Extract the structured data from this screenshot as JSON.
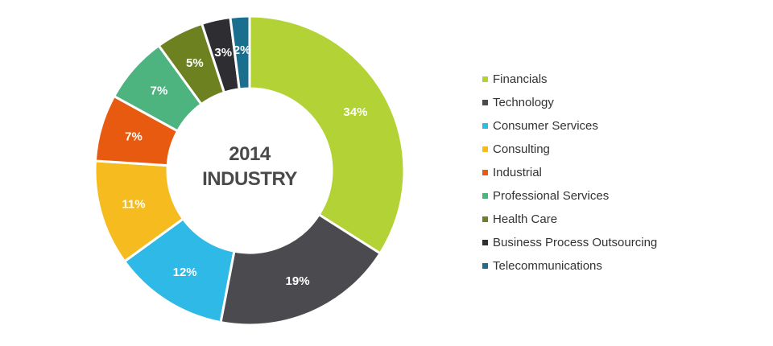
{
  "chart_data": {
    "type": "pie",
    "title": "2014",
    "subtitle": "INDUSTRY",
    "legend_position": "right",
    "categories": [
      "Financials",
      "Technology",
      "Consumer Services",
      "Consulting",
      "Industrial",
      "Professional Services",
      "Health Care",
      "Business Process Outsourcing",
      "Telecommunications"
    ],
    "values": [
      34,
      19,
      12,
      11,
      7,
      7,
      5,
      3,
      2
    ],
    "labels": [
      "34%",
      "19%",
      "12%",
      "11%",
      "7%",
      "7%",
      "5%",
      "3%",
      "2%"
    ],
    "colors": [
      "#b2d235",
      "#4b4b4f",
      "#2fb9e6",
      "#f6bc1f",
      "#e85a10",
      "#4db37f",
      "#6d8121",
      "#2e2e32",
      "#1a6f8e"
    ]
  }
}
